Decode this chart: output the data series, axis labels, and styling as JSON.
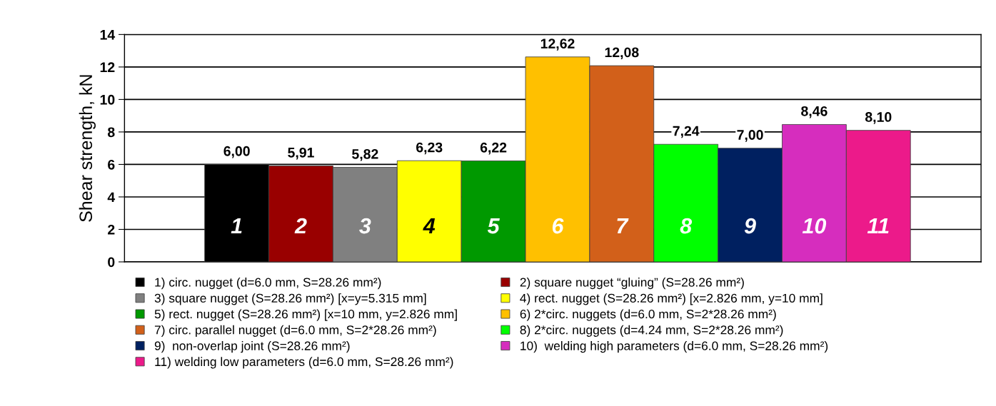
{
  "chart_data": {
    "type": "bar",
    "ylabel": "Shear strength, kN",
    "categories": [
      "1",
      "2",
      "3",
      "4",
      "5",
      "6",
      "7",
      "8",
      "9",
      "10",
      "11"
    ],
    "series": [
      {
        "name": "1) circ. nugget (d=6.0 mm, S=28.26 mm²)",
        "color": "#000000",
        "values": [
          6.0,
          null,
          null,
          null,
          null,
          null,
          null,
          null,
          null,
          null,
          null
        ]
      },
      {
        "name": "2) square nugget “gluing” (S=28.26 mm²)",
        "color": "#990000",
        "values": [
          null,
          5.91,
          null,
          null,
          null,
          null,
          null,
          null,
          null,
          null,
          null
        ]
      },
      {
        "name": "3) square nugget (S=28.26 mm²) [x=y=5.315 mm]",
        "color": "#808080",
        "values": [
          null,
          null,
          5.82,
          null,
          null,
          null,
          null,
          null,
          null,
          null,
          null
        ]
      },
      {
        "name": "4) rect. nugget (S=28.26 mm²) [x=2.826 mm, y=10 mm]",
        "color": "#ffff00",
        "values": [
          null,
          null,
          null,
          6.23,
          null,
          null,
          null,
          null,
          null,
          null,
          null
        ]
      },
      {
        "name": "5) rect. nugget (S=28.26 mm²) [x=10 mm, y=2.826 mm]",
        "color": "#009900",
        "values": [
          null,
          null,
          null,
          null,
          6.22,
          null,
          null,
          null,
          null,
          null,
          null
        ]
      },
      {
        "name": "6) 2*circ. nuggets (d=6.0 mm, S=2*28.26 mm²)",
        "color": "#ffc000",
        "values": [
          null,
          null,
          null,
          null,
          null,
          12.62,
          null,
          null,
          null,
          null,
          null
        ]
      },
      {
        "name": "7) circ. parallel nugget (d=6.0 mm, S=2*28.26 mm²)",
        "color": "#d2601a",
        "values": [
          null,
          null,
          null,
          null,
          null,
          null,
          12.08,
          null,
          null,
          null,
          null
        ]
      },
      {
        "name": "8) 2*circ. nuggets (d=4.24 mm, S=2*28.26 mm²)",
        "color": "#00ff00",
        "values": [
          null,
          null,
          null,
          null,
          null,
          null,
          null,
          7.24,
          null,
          null,
          null
        ]
      },
      {
        "name": "9)  non-overlap joint (S=28.26 mm²)",
        "color": "#002060",
        "values": [
          null,
          null,
          null,
          null,
          null,
          null,
          null,
          null,
          7.0,
          null,
          null
        ]
      },
      {
        "name": "10)  welding high parameters (d=6.0 mm, S=28.26 mm²)",
        "color": "#d62dbe",
        "values": [
          null,
          null,
          null,
          null,
          null,
          null,
          null,
          null,
          null,
          8.46,
          null
        ]
      },
      {
        "name": "11) welding low parameters (d=6.0 mm, S=28.26 mm²)",
        "color": "#ec1a8a",
        "values": [
          null,
          null,
          null,
          null,
          null,
          null,
          null,
          null,
          null,
          null,
          8.1
        ]
      }
    ],
    "value_labels": [
      "6,00",
      "5,91",
      "5,82",
      "6,23",
      "6,22",
      "12,62",
      "12,08",
      "7,24",
      "7,00",
      "8,46",
      "8,10"
    ],
    "ylim": [
      0,
      14
    ],
    "yticks": [
      0,
      2,
      4,
      6,
      8,
      10,
      12,
      14
    ],
    "grid": "y",
    "legend": "bottom"
  }
}
